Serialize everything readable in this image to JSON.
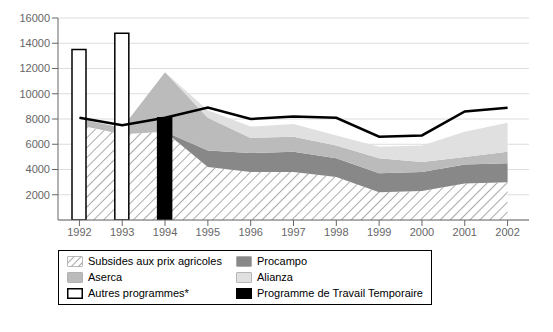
{
  "chart_data": {
    "type": "area",
    "stacked": true,
    "grid": true,
    "legend": "bottom",
    "x": [
      1992,
      1993,
      1994,
      1995,
      1996,
      1997,
      1998,
      1999,
      2000,
      2001,
      2002
    ],
    "xlim": [
      1991.5,
      2002.5
    ],
    "xticks": [
      1992,
      1993,
      1994,
      1995,
      1996,
      1997,
      1998,
      1999,
      2000,
      2001,
      2002
    ],
    "ylim": [
      0,
      16000
    ],
    "yticks": [
      2000,
      4000,
      6000,
      8000,
      10000,
      12000,
      14000,
      16000
    ],
    "series": [
      {
        "name": "Subsides aux prix agricoles",
        "type": "area",
        "color": "#aaaaaa",
        "values": [
          7500,
          6800,
          7000,
          4200,
          3800,
          3800,
          3400,
          2200,
          2300,
          2900,
          3000
        ]
      },
      {
        "name": "Procampo",
        "type": "area",
        "color": "#888888",
        "values": [
          0,
          0,
          0,
          1300,
          1500,
          1600,
          1500,
          1500,
          1500,
          1500,
          1500
        ]
      },
      {
        "name": "Aserca",
        "type": "area",
        "color": "#bbbbbb",
        "values": [
          500,
          500,
          4700,
          2600,
          1200,
          1200,
          1000,
          1200,
          800,
          600,
          900
        ]
      },
      {
        "name": "Alianza",
        "type": "area",
        "color": "#e0e0e0",
        "values": [
          0,
          0,
          0,
          600,
          900,
          1000,
          800,
          900,
          1300,
          2000,
          2300
        ]
      },
      {
        "name": "Autres programmes*",
        "type": "bar",
        "color": "#ffffff",
        "values": [
          13500,
          14800,
          0,
          0,
          0,
          0,
          0,
          0,
          0,
          0,
          0
        ]
      },
      {
        "name": "Programme de Travail Temporaire",
        "type": "bar",
        "color": "#000000",
        "values": [
          0,
          0,
          8100,
          0,
          0,
          0,
          0,
          0,
          0,
          0,
          0
        ]
      },
      {
        "type": "line",
        "color": "#000000",
        "values": [
          8100,
          7500,
          8100,
          8900,
          8000,
          8200,
          8100,
          6600,
          6700,
          8600,
          8900
        ]
      }
    ]
  }
}
